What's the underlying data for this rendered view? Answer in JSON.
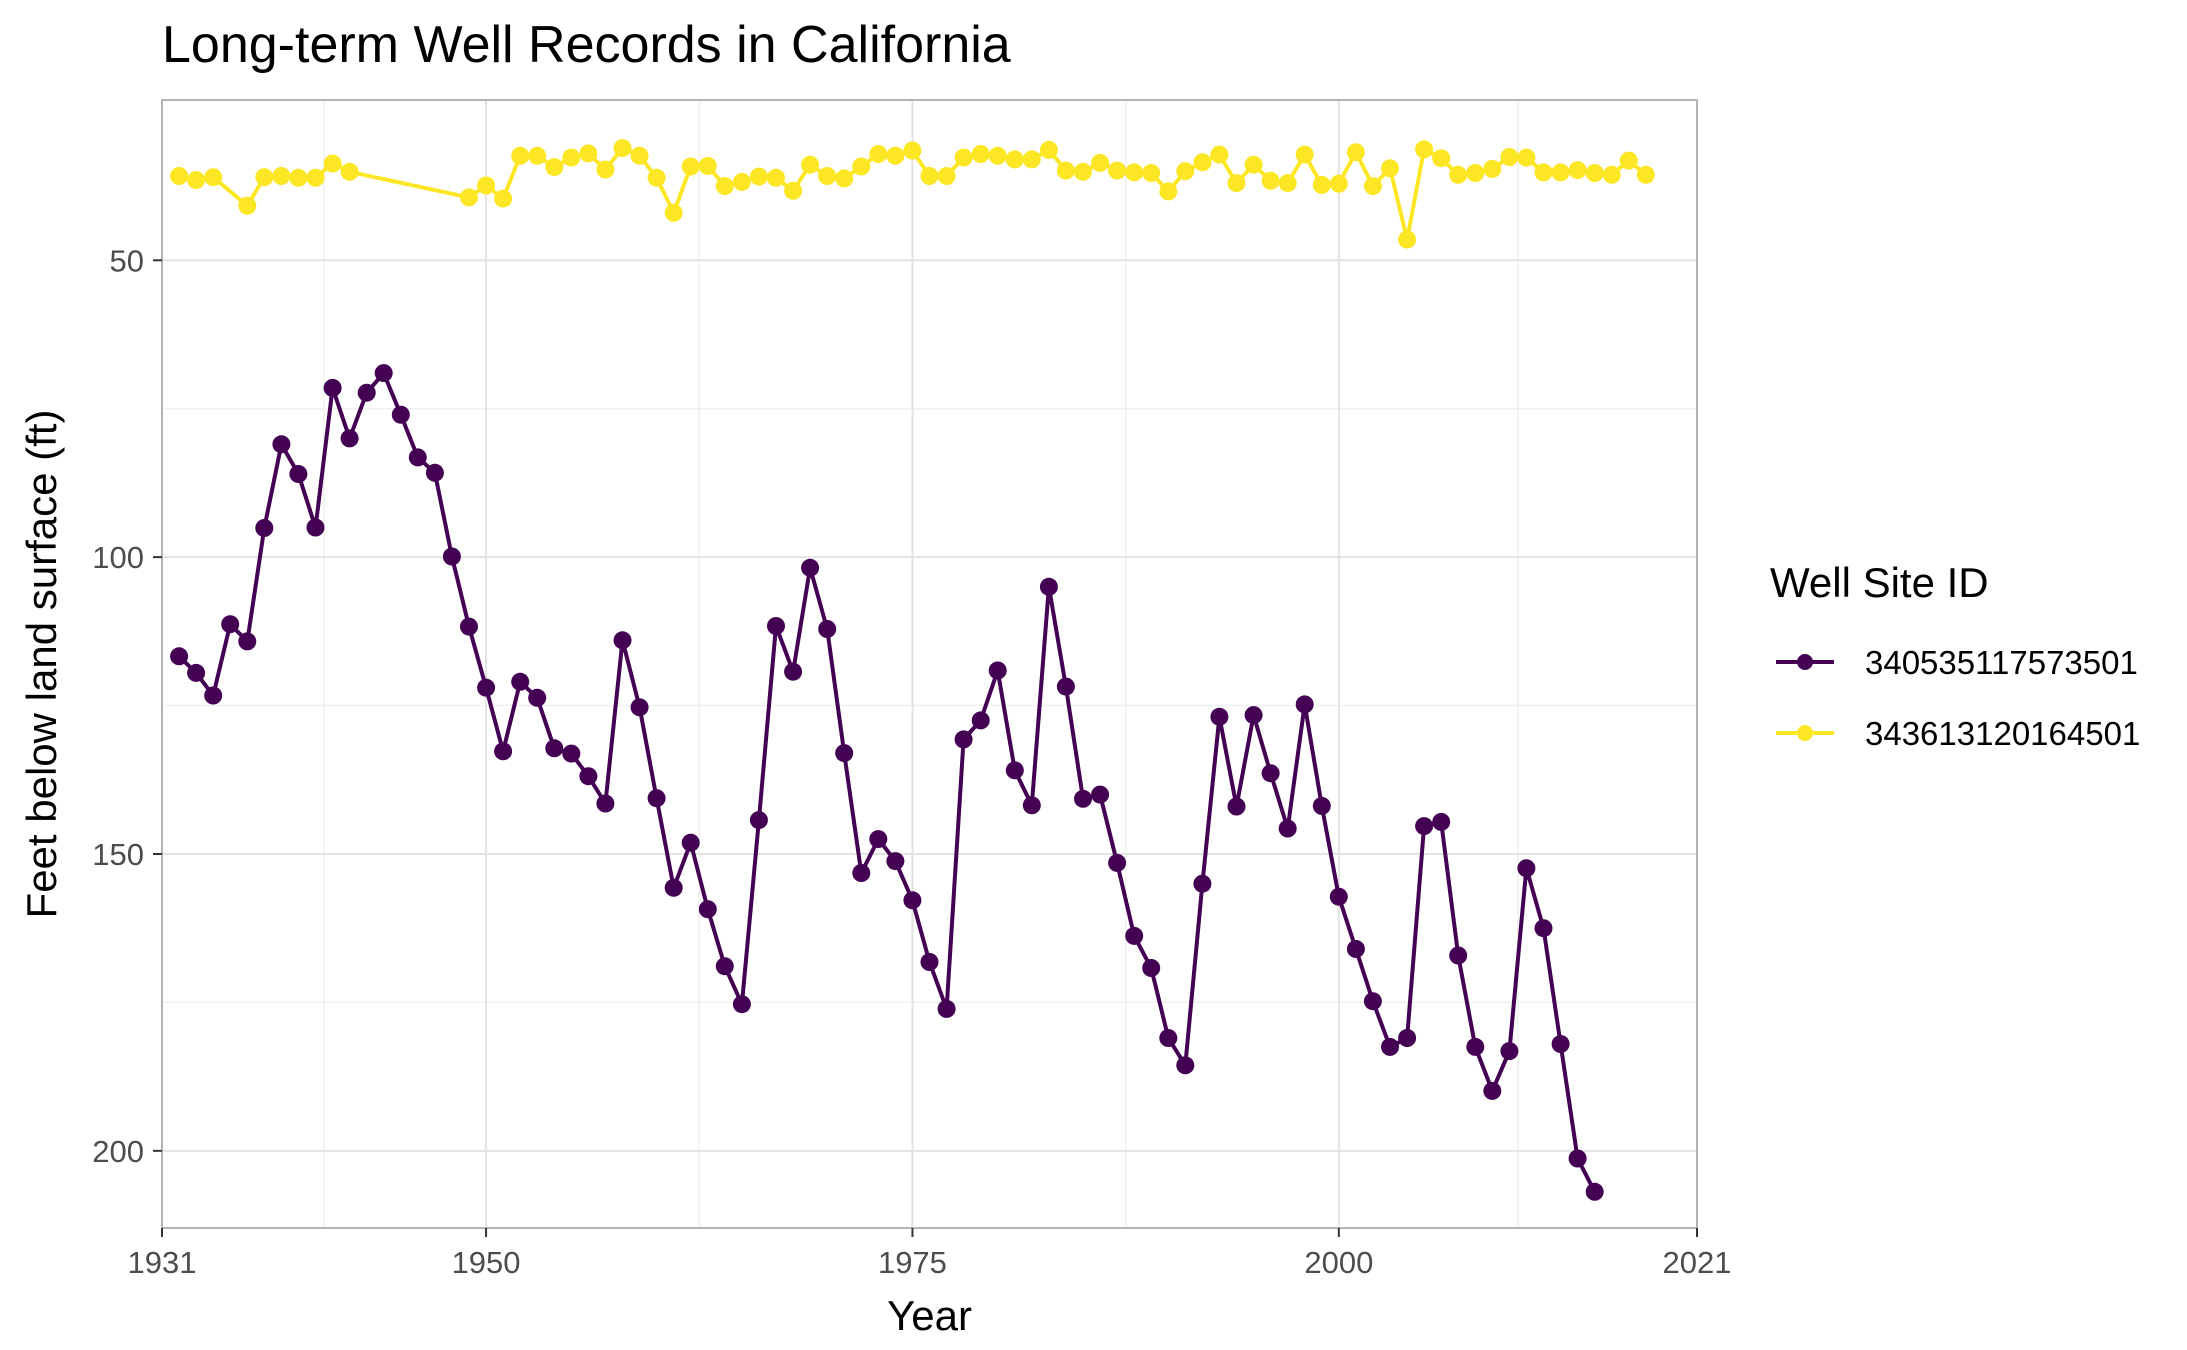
{
  "chart_data": {
    "type": "line",
    "title": "Long-term Well Records in California",
    "xlabel": "Year",
    "ylabel": "Feet below land surface (ft)",
    "xlim": [
      1931,
      2021
    ],
    "ylim": [
      213,
      23
    ],
    "y_reversed": true,
    "x_ticks": [
      1931,
      1950,
      1975,
      2000,
      2021
    ],
    "y_ticks": [
      50,
      100,
      150,
      200
    ],
    "grid": true,
    "legend": {
      "title": "Well Site ID",
      "position": "right"
    },
    "series": [
      {
        "name": "340535117573501",
        "color": "#440154",
        "x": [
          1932,
          1933,
          1934,
          1935,
          1936,
          1937,
          1938,
          1939,
          1940,
          1941,
          1942,
          1943,
          1944,
          1945,
          1946,
          1947,
          1948,
          1949,
          1950,
          1951,
          1952,
          1953,
          1954,
          1955,
          1956,
          1957,
          1958,
          1959,
          1960,
          1961,
          1962,
          1963,
          1964,
          1965,
          1966,
          1967,
          1968,
          1969,
          1970,
          1971,
          1972,
          1973,
          1974,
          1975,
          1976,
          1977,
          1978,
          1979,
          1980,
          1981,
          1982,
          1983,
          1984,
          1985,
          1986,
          1987,
          1988,
          1989,
          1990,
          1991,
          1992,
          1993,
          1994,
          1995,
          1996,
          1997,
          1998,
          1999,
          2000,
          2001,
          2002,
          2003,
          2004,
          2005,
          2006,
          2007,
          2008,
          2009,
          2010,
          2011,
          2012,
          2013,
          2014,
          2015
        ],
        "values": [
          116.7,
          119.5,
          123.3,
          111.3,
          114.2,
          95.1,
          81.0,
          86.0,
          95.0,
          71.5,
          80.0,
          72.3,
          69.0,
          76.0,
          83.2,
          85.8,
          99.9,
          111.7,
          122.0,
          132.7,
          121.0,
          123.7,
          132.2,
          133.1,
          136.9,
          141.5,
          114.0,
          125.3,
          140.6,
          155.7,
          148.1,
          159.3,
          168.9,
          175.3,
          144.3,
          111.6,
          119.3,
          101.8,
          112.1,
          133.0,
          153.2,
          147.5,
          151.2,
          157.8,
          168.2,
          176.1,
          130.7,
          127.5,
          119.1,
          135.9,
          141.8,
          105.0,
          121.8,
          140.7,
          140.0,
          151.5,
          163.8,
          169.2,
          181.0,
          185.6,
          155.0,
          126.9,
          142.0,
          126.6,
          136.4,
          145.7,
          124.8,
          141.9,
          157.2,
          166.0,
          174.8,
          182.5,
          181.0,
          145.3,
          144.6,
          167.1,
          182.5,
          189.9,
          183.2,
          152.4,
          162.5,
          182.0,
          201.3,
          206.9
        ]
      },
      {
        "name": "343613120164501",
        "color": "#fde725",
        "x": [
          1932,
          1933,
          1934,
          1936,
          1937,
          1938,
          1939,
          1940,
          1941,
          1942,
          1949,
          1950,
          1951,
          1952,
          1953,
          1954,
          1955,
          1956,
          1957,
          1958,
          1959,
          1960,
          1961,
          1962,
          1963,
          1964,
          1965,
          1966,
          1967,
          1968,
          1969,
          1970,
          1971,
          1972,
          1973,
          1974,
          1975,
          1976,
          1977,
          1978,
          1979,
          1980,
          1981,
          1982,
          1983,
          1984,
          1985,
          1986,
          1987,
          1988,
          1989,
          1990,
          1991,
          1992,
          1993,
          1994,
          1995,
          1996,
          1997,
          1998,
          1999,
          2000,
          2001,
          2002,
          2003,
          2004,
          2005,
          2006,
          2007,
          2008,
          2009,
          2010,
          2011,
          2012,
          2013,
          2014,
          2015,
          2016,
          2017,
          2018
        ],
        "values": [
          35.8,
          36.5,
          36.0,
          40.8,
          36.0,
          35.8,
          36.1,
          36.1,
          33.7,
          35.1,
          39.4,
          37.4,
          39.6,
          32.4,
          32.4,
          34.3,
          32.7,
          32.0,
          34.7,
          31.1,
          32.4,
          36.1,
          42.0,
          34.2,
          34.1,
          37.5,
          36.8,
          35.9,
          36.1,
          38.3,
          33.9,
          35.8,
          36.2,
          34.2,
          32.1,
          32.4,
          31.5,
          35.8,
          35.8,
          32.7,
          32.1,
          32.4,
          33.0,
          33.0,
          31.4,
          34.9,
          35.1,
          33.6,
          34.9,
          35.2,
          35.3,
          38.4,
          35.0,
          33.5,
          32.2,
          37.0,
          33.9,
          36.6,
          37.0,
          32.2,
          37.3,
          37.1,
          31.8,
          37.5,
          34.5,
          46.5,
          31.3,
          32.8,
          35.6,
          35.3,
          34.6,
          32.6,
          32.7,
          35.2,
          35.2,
          34.8,
          35.3,
          35.6,
          33.2,
          35.6
        ]
      }
    ]
  }
}
